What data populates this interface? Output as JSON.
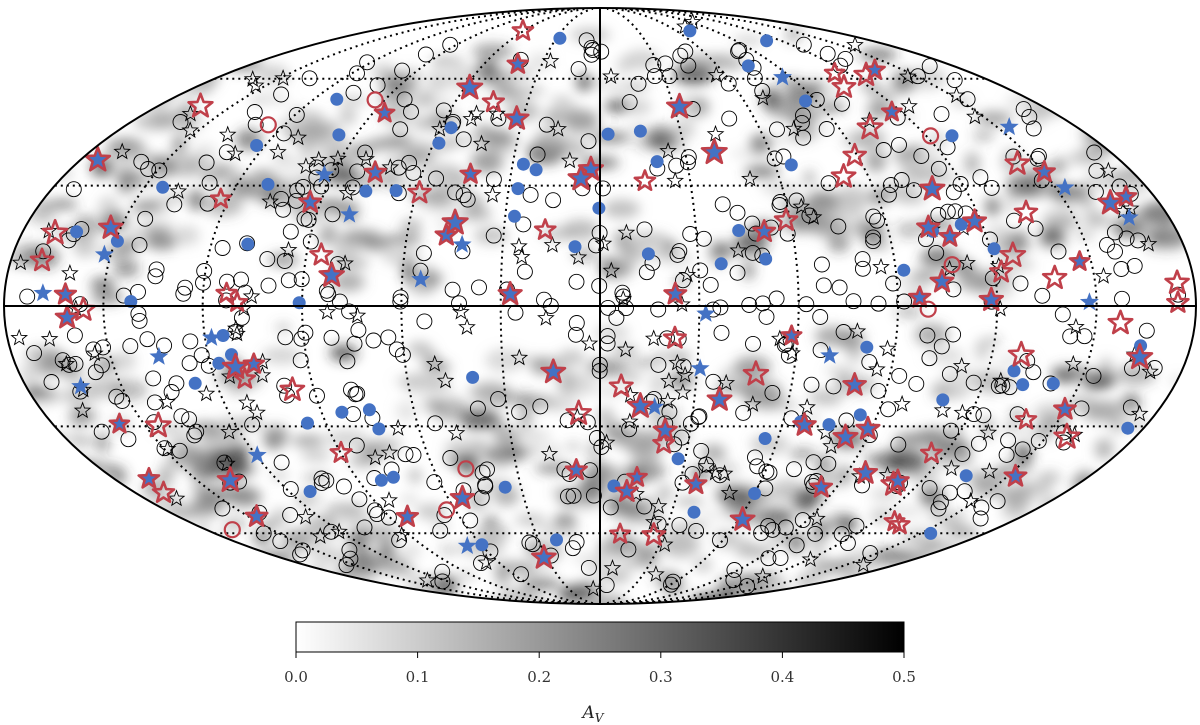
{
  "chart_data": {
    "type": "scatter",
    "projection": "mollweide",
    "title": "",
    "background_map": "dust extinction (A_V), grayscale",
    "series": [],
    "marker_styles": [
      {
        "symbol": "open-circle",
        "color": "#000000"
      },
      {
        "symbol": "open-star",
        "color": "#000000"
      },
      {
        "symbol": "filled-circle",
        "color": "#4472C4"
      },
      {
        "symbol": "filled-star",
        "color": "#4472C4"
      },
      {
        "symbol": "star",
        "color": "#4472C4",
        "edge": "#C0404A"
      },
      {
        "symbol": "open-circle",
        "color": "#C0404A"
      }
    ],
    "colorbar": {
      "label_main": "A",
      "label_sub": "V",
      "range": [
        0.0,
        0.5
      ],
      "ticks": [
        "0.0",
        "0.1",
        "0.2",
        "0.3",
        "0.4",
        "0.5"
      ],
      "colormap": "white-to-black"
    }
  }
}
